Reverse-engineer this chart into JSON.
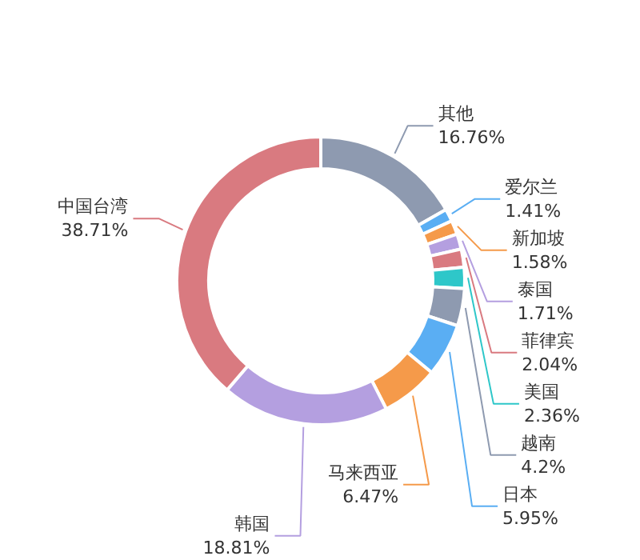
{
  "chart_data": {
    "type": "donut",
    "categories": [
      "其他",
      "爱尔兰",
      "新加坡",
      "泰国",
      "菲律宾",
      "美国",
      "越南",
      "日本",
      "马来西亚",
      "韩国",
      "中国台湾"
    ],
    "values": [
      16.76,
      1.41,
      1.58,
      1.71,
      2.04,
      2.36,
      4.2,
      5.95,
      6.47,
      18.81,
      38.71
    ],
    "value_labels": [
      "16.76%",
      "1.41%",
      "1.58%",
      "1.71%",
      "2.04%",
      "2.36%",
      "4.2%",
      "5.95%",
      "6.47%",
      "18.81%",
      "38.71%"
    ],
    "colors": [
      "#8e9ab0",
      "#5aaef3",
      "#f59a4a",
      "#b49fe0",
      "#d97a80",
      "#2ec7c9",
      "#8e9ab0",
      "#5aaef3",
      "#f59a4a",
      "#b49fe0",
      "#d97a80"
    ]
  }
}
